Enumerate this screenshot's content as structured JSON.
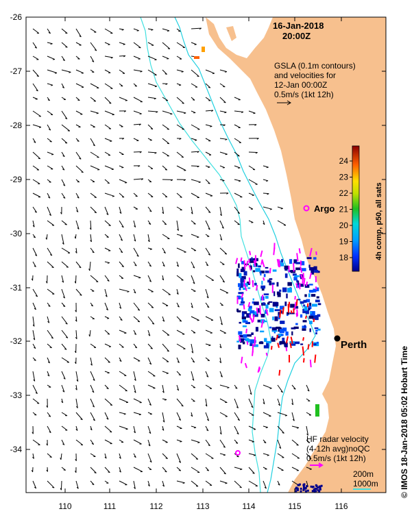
{
  "title": {
    "date": "16-Jan-2018",
    "time": "20:00Z"
  },
  "gsla_legend": {
    "line1": "GSLA (0.1m contours)",
    "line2": "and velocities for",
    "line3": "12-Jan 00:00Z",
    "scale": "0.5m/s (1kt 12h)"
  },
  "hf_legend": {
    "line1": "HF radar velocity",
    "line2": "(4-12h avg)noQC",
    "scale": "0.5m/s (1kt 12h)"
  },
  "depth_legend": {
    "shallow": "200m",
    "deep": "1000m"
  },
  "places": {
    "argo": "Argo",
    "perth": "Perth"
  },
  "colorbar": {
    "title": "4h comp, p50, all sats",
    "ticks": [
      "24",
      "23",
      "22",
      "21",
      "20",
      "19",
      "18"
    ],
    "colors": [
      "#00008b",
      "#0040ff",
      "#00a0ff",
      "#00d0d0",
      "#20c020",
      "#e0e000",
      "#ff8000",
      "#ff2000",
      "#8b0000"
    ]
  },
  "axes": {
    "x_ticks": [
      "110",
      "111",
      "112",
      "113",
      "114",
      "115",
      "116"
    ],
    "y_ticks": [
      "-26",
      "-27",
      "-28",
      "-29",
      "-30",
      "-31",
      "-32",
      "-33",
      "-34"
    ]
  },
  "credit": "© IMOS 18-Jan-2018 05:02 Hobart Time",
  "colors": {
    "land": "#f7c08e",
    "contour_200": "#20d0e0",
    "contour_1000": "#40e0e0",
    "argo": "#ff00ff",
    "hf_arrow": "#ff00ff",
    "hf_arrow_strong": "#ff0000"
  }
}
